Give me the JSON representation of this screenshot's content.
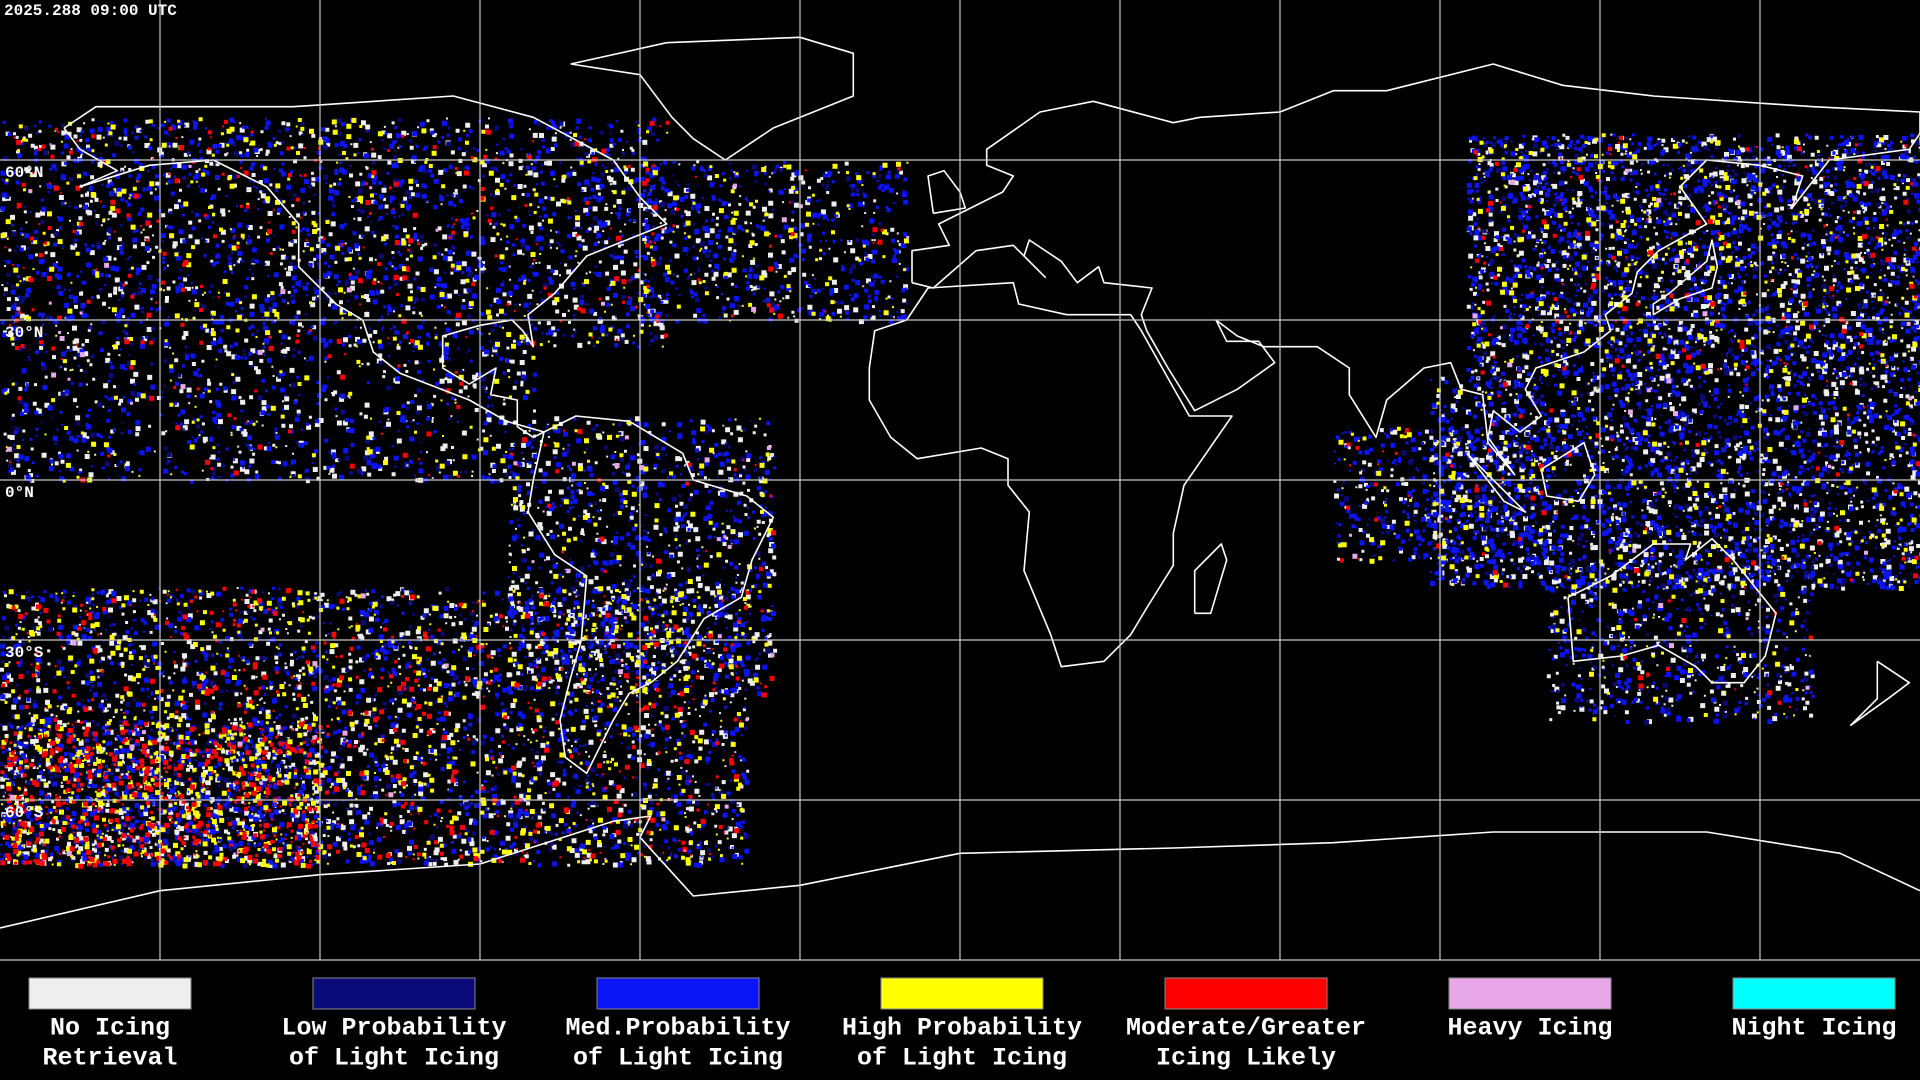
{
  "header": {
    "timestamp": "2025.288 09:00 UTC"
  },
  "map": {
    "latitude_labels": [
      "60°N",
      "30°N",
      "0°N",
      "30°S",
      "60°S"
    ]
  },
  "legend": [
    {
      "label": [
        "No Icing",
        "Retrieval"
      ],
      "color": "#eeeeee"
    },
    {
      "label": [
        "Low Probability",
        "of Light Icing"
      ],
      "color": "#0a0a78"
    },
    {
      "label": [
        "Med.Probability",
        "of Light Icing"
      ],
      "color": "#0a14f5"
    },
    {
      "label": [
        "High Probability",
        "of Light Icing"
      ],
      "color": "#ffff00"
    },
    {
      "label": [
        "Moderate/Greater",
        "Icing Likely"
      ],
      "color": "#ff0000"
    },
    {
      "label": [
        "Heavy Icing"
      ],
      "color": "#e8a8e8"
    },
    {
      "label": [
        "Night Icing"
      ],
      "color": "#00ffff"
    }
  ]
}
